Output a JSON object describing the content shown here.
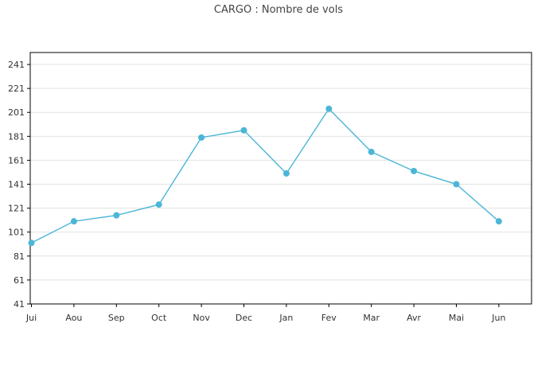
{
  "chart_data": {
    "type": "line",
    "title": "CARGO : Nombre de vols",
    "xlabel": "",
    "ylabel": "",
    "categories": [
      "Jui",
      "Aou",
      "Sep",
      "Oct",
      "Nov",
      "Dec",
      "Jan",
      "Fev",
      "Mar",
      "Avr",
      "Mai",
      "Jun"
    ],
    "series": [
      {
        "values": [
          92,
          110,
          115,
          124,
          180,
          186,
          150,
          204,
          168,
          152,
          141,
          110
        ]
      }
    ],
    "ylim": [
      41,
      251
    ],
    "yticks": [
      41,
      61,
      81,
      101,
      121,
      141,
      161,
      181,
      201,
      221,
      241
    ],
    "grid": true,
    "legend": "none",
    "colors": {
      "line": "#4bb6d6",
      "marker": "#4bb6d6",
      "grid": "#e2e2e2",
      "axis": "#000000"
    }
  }
}
